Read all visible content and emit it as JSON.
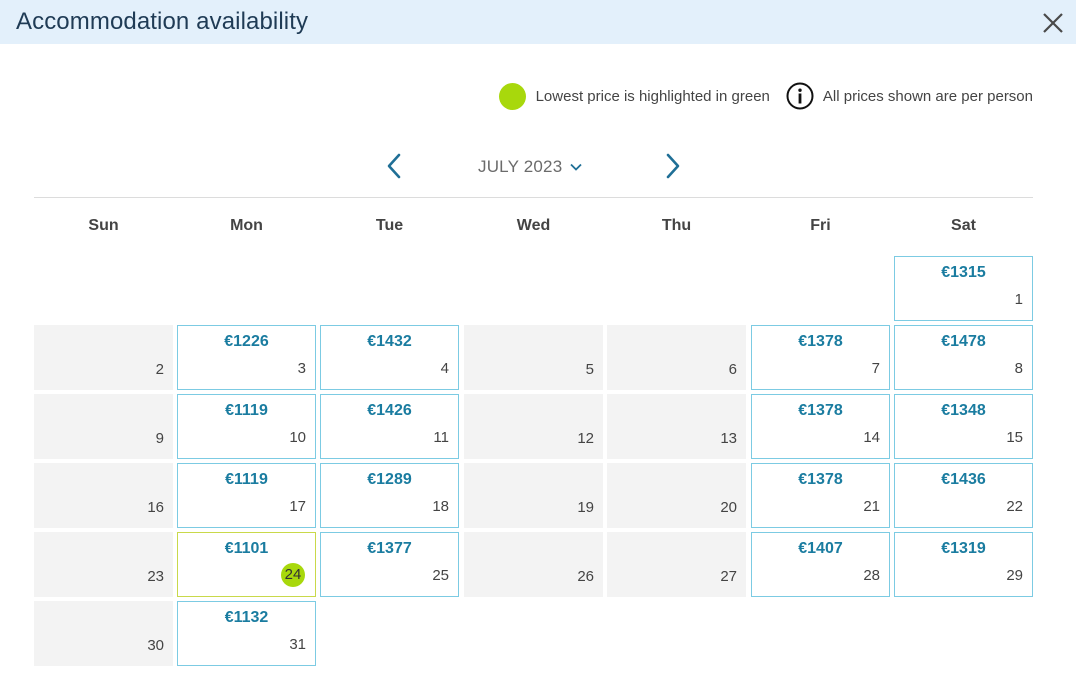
{
  "header": {
    "title": "Accommodation availability"
  },
  "legend": {
    "lowest_label": "Lowest price is highlighted in green",
    "per_person_label": "All prices shown are per person",
    "lowest_color": "#a8d80c"
  },
  "calendar": {
    "month_label": "JULY 2023",
    "weekdays": [
      "Sun",
      "Mon",
      "Tue",
      "Wed",
      "Thu",
      "Fri",
      "Sat"
    ],
    "weeks": [
      [
        null,
        null,
        null,
        null,
        null,
        null,
        {
          "day": "1",
          "price": "€1315"
        }
      ],
      [
        {
          "day": "2"
        },
        {
          "day": "3",
          "price": "€1226"
        },
        {
          "day": "4",
          "price": "€1432"
        },
        {
          "day": "5"
        },
        {
          "day": "6"
        },
        {
          "day": "7",
          "price": "€1378"
        },
        {
          "day": "8",
          "price": "€1478"
        }
      ],
      [
        {
          "day": "9"
        },
        {
          "day": "10",
          "price": "€1119"
        },
        {
          "day": "11",
          "price": "€1426"
        },
        {
          "day": "12"
        },
        {
          "day": "13"
        },
        {
          "day": "14",
          "price": "€1378"
        },
        {
          "day": "15",
          "price": "€1348"
        }
      ],
      [
        {
          "day": "16"
        },
        {
          "day": "17",
          "price": "€1119"
        },
        {
          "day": "18",
          "price": "€1289"
        },
        {
          "day": "19"
        },
        {
          "day": "20"
        },
        {
          "day": "21",
          "price": "€1378"
        },
        {
          "day": "22",
          "price": "€1436"
        }
      ],
      [
        {
          "day": "23"
        },
        {
          "day": "24",
          "price": "€1101",
          "lowest": true
        },
        {
          "day": "25",
          "price": "€1377"
        },
        {
          "day": "26"
        },
        {
          "day": "27"
        },
        {
          "day": "28",
          "price": "€1407"
        },
        {
          "day": "29",
          "price": "€1319"
        }
      ],
      [
        {
          "day": "30"
        },
        {
          "day": "31",
          "price": "€1132"
        },
        null,
        null,
        null,
        null,
        null
      ]
    ]
  }
}
